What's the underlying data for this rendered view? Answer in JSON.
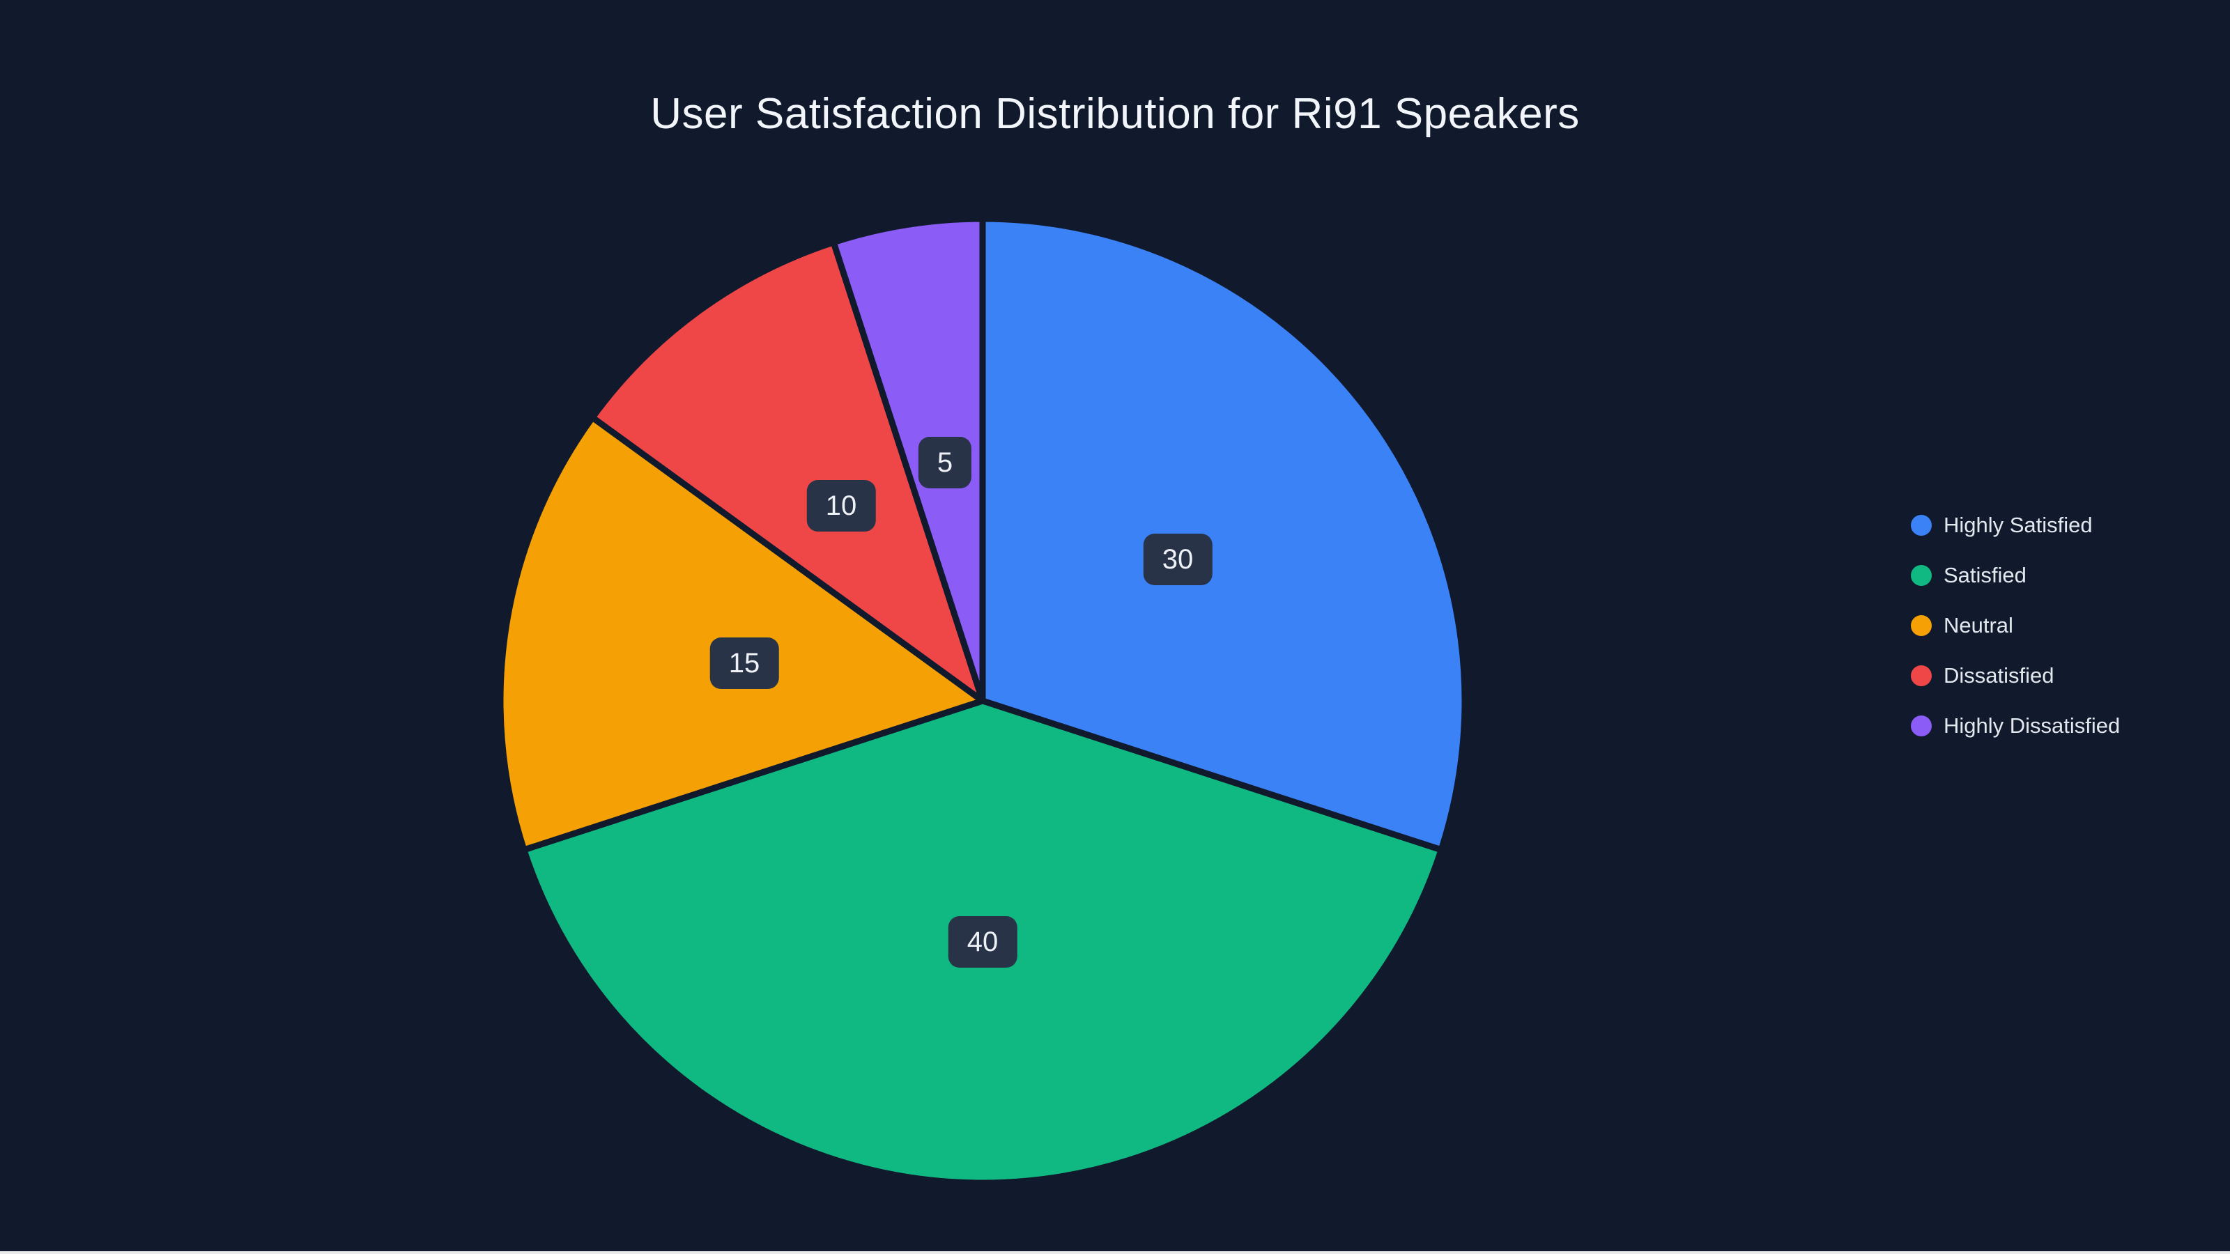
{
  "page": {
    "background": "#111a2c",
    "bottom_strip_color": "#e9e9e9"
  },
  "chart_data": {
    "type": "pie",
    "title": "User Satisfaction Distribution for Ri91 Speakers",
    "categories": [
      "Highly Satisfied",
      "Satisfied",
      "Neutral",
      "Dissatisfied",
      "Highly Dissatisfied"
    ],
    "values": [
      30,
      40,
      15,
      10,
      5
    ],
    "slice_value_labels": [
      "30",
      "40",
      "15",
      "10",
      "5"
    ],
    "colors": [
      "#3b82f6",
      "#10b981",
      "#f5a105",
      "#ef4747",
      "#8b5cf6"
    ],
    "start_angle": "12 o'clock",
    "direction": "clockwise",
    "legend_position": "right",
    "grid": false,
    "label_box_bg": "#283347",
    "label_text_color": "#eef1f6"
  }
}
